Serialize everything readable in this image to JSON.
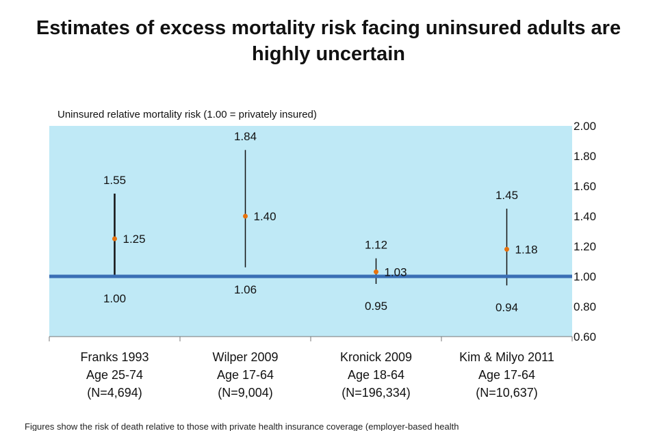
{
  "title_line1": "Estimates of excess mortality risk facing uninsured adults are",
  "title_line2": "highly uncertain",
  "footnote": "Figures show the risk of death relative to those with private health insurance coverage (employer-based health",
  "colors": {
    "plot_bg": "#bfe9f6",
    "baseline": "#3a6fb5",
    "point": "#e8720c",
    "whisker": "#111111"
  },
  "chart_data": {
    "type": "range",
    "ylabel": "Uninsured  relative  mortality  risk (1.00 = privately insured)",
    "ylim": [
      0.6,
      2.0
    ],
    "yticks": [
      "2.00",
      "1.80",
      "1.60",
      "1.40",
      "1.20",
      "1.00",
      "0.80",
      "0.60"
    ],
    "y_axis_position": "right",
    "baseline": 1.0,
    "categories": [
      {
        "lines": [
          "Franks 1993",
          "Age 25-74",
          "(N=4,694)"
        ]
      },
      {
        "lines": [
          "Wilper 2009",
          "Age 17-64",
          "(N=9,004)"
        ]
      },
      {
        "lines": [
          "Kronick 2009",
          "Age 18-64",
          "(N=196,334)"
        ]
      },
      {
        "lines": [
          "Kim & Milyo 2011",
          "Age 17-64",
          "(N=10,637)"
        ]
      }
    ],
    "series": [
      {
        "low": 1.0,
        "estimate": 1.25,
        "high": 1.55,
        "low_label": "1.00",
        "estimate_label": "1.25",
        "high_label": "1.55"
      },
      {
        "low": 1.06,
        "estimate": 1.4,
        "high": 1.84,
        "low_label": "1.06",
        "estimate_label": "1.40",
        "high_label": "1.84"
      },
      {
        "low": 0.95,
        "estimate": 1.03,
        "high": 1.12,
        "low_label": "0.95",
        "estimate_label": "1.03",
        "high_label": "1.12"
      },
      {
        "low": 0.94,
        "estimate": 1.18,
        "high": 1.45,
        "low_label": "0.94",
        "estimate_label": "1.18",
        "high_label": "1.45"
      }
    ]
  }
}
